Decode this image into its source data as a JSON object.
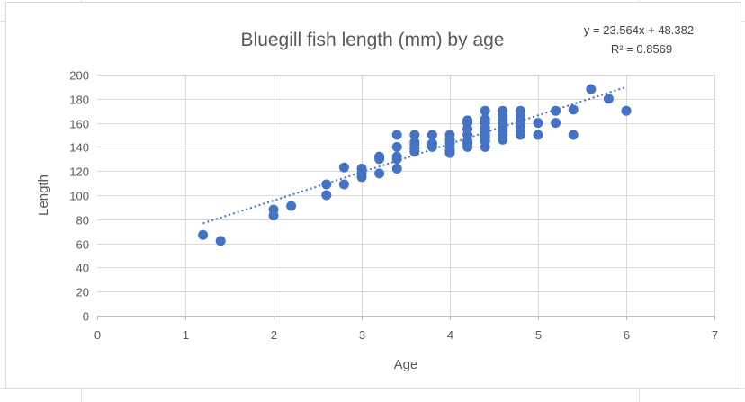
{
  "chart_data": {
    "type": "scatter",
    "title": "Bluegill fish length (mm) by age",
    "xlabel": "Age",
    "ylabel": "Length",
    "xlim": [
      0,
      7
    ],
    "ylim": [
      0,
      200
    ],
    "x_ticks": [
      "0",
      "1",
      "2",
      "3",
      "4",
      "5",
      "6",
      "7"
    ],
    "y_ticks": [
      "0",
      "20",
      "40",
      "60",
      "80",
      "100",
      "120",
      "140",
      "160",
      "180",
      "200"
    ],
    "grid": true,
    "marker_color": "#4472c4",
    "trendline": {
      "type": "linear",
      "slope": 23.564,
      "intercept": 48.382,
      "x_range": [
        1.2,
        6.0
      ],
      "equation": "y = 23.564x + 48.382",
      "r_squared": "R² = 0.8569",
      "style": "dotted"
    },
    "points": [
      [
        1.2,
        67
      ],
      [
        1.4,
        62
      ],
      [
        2.0,
        83
      ],
      [
        2.0,
        88
      ],
      [
        2.2,
        91
      ],
      [
        2.6,
        100
      ],
      [
        2.6,
        109
      ],
      [
        2.8,
        109
      ],
      [
        2.8,
        123
      ],
      [
        3.0,
        115
      ],
      [
        3.0,
        118
      ],
      [
        3.0,
        122
      ],
      [
        3.2,
        118
      ],
      [
        3.2,
        130
      ],
      [
        3.2,
        132
      ],
      [
        3.4,
        122
      ],
      [
        3.4,
        130
      ],
      [
        3.4,
        132
      ],
      [
        3.4,
        140
      ],
      [
        3.4,
        150
      ],
      [
        3.6,
        136
      ],
      [
        3.6,
        139
      ],
      [
        3.6,
        142
      ],
      [
        3.6,
        144
      ],
      [
        3.6,
        150
      ],
      [
        3.8,
        140
      ],
      [
        3.8,
        143
      ],
      [
        3.8,
        150
      ],
      [
        4.0,
        135
      ],
      [
        4.0,
        137
      ],
      [
        4.0,
        140
      ],
      [
        4.0,
        143
      ],
      [
        4.0,
        146
      ],
      [
        4.0,
        150
      ],
      [
        4.2,
        140
      ],
      [
        4.2,
        143
      ],
      [
        4.2,
        145
      ],
      [
        4.2,
        150
      ],
      [
        4.2,
        155
      ],
      [
        4.2,
        160
      ],
      [
        4.2,
        162
      ],
      [
        4.4,
        140
      ],
      [
        4.4,
        145
      ],
      [
        4.4,
        148
      ],
      [
        4.4,
        150
      ],
      [
        4.4,
        153
      ],
      [
        4.4,
        156
      ],
      [
        4.4,
        160
      ],
      [
        4.4,
        163
      ],
      [
        4.4,
        170
      ],
      [
        4.6,
        146
      ],
      [
        4.6,
        150
      ],
      [
        4.6,
        153
      ],
      [
        4.6,
        156
      ],
      [
        4.6,
        160
      ],
      [
        4.6,
        163
      ],
      [
        4.6,
        166
      ],
      [
        4.6,
        170
      ],
      [
        4.8,
        150
      ],
      [
        4.8,
        153
      ],
      [
        4.8,
        157
      ],
      [
        4.8,
        160
      ],
      [
        4.8,
        163
      ],
      [
        4.8,
        166
      ],
      [
        4.8,
        170
      ],
      [
        5.0,
        150
      ],
      [
        5.0,
        160
      ],
      [
        5.2,
        160
      ],
      [
        5.2,
        170
      ],
      [
        5.4,
        150
      ],
      [
        5.4,
        171
      ],
      [
        5.6,
        188
      ],
      [
        5.8,
        180
      ],
      [
        6.0,
        170
      ]
    ]
  }
}
